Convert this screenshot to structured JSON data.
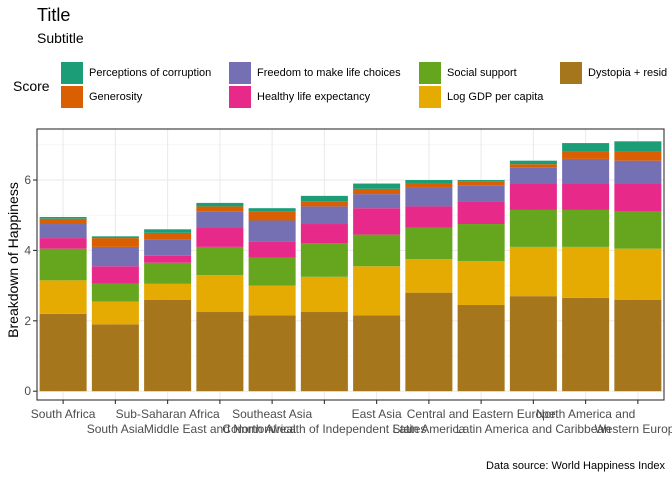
{
  "title": "Title",
  "subtitle": "Subtitle",
  "caption": "Data source: World Happiness Index",
  "legend": {
    "title": "Score",
    "items": [
      {
        "label": "Perceptions of corruption",
        "color": "#1B9E77"
      },
      {
        "label": "Generosity",
        "color": "#D95F02"
      },
      {
        "label": "Freedom to make life choices",
        "color": "#7570B3"
      },
      {
        "label": "Healthy life expectancy",
        "color": "#E7298A"
      },
      {
        "label": "Social support",
        "color": "#66A61E"
      },
      {
        "label": "Log GDP per capita",
        "color": "#E6AB02"
      },
      {
        "label": "Dystopia + resid",
        "color": "#A6761D"
      }
    ]
  },
  "chart_data": {
    "type": "bar",
    "stacked": true,
    "title": "Title",
    "subtitle": "Subtitle",
    "xlabel": "",
    "ylabel": "Breakdown of Happiness",
    "ylim": [
      -0.25,
      7.45
    ],
    "yticks": [
      0,
      2,
      4,
      6
    ],
    "grid": true,
    "legend_position": "top",
    "categories": [
      "South Africa",
      "South Asia",
      "Sub-Saharan Africa",
      "Middle East and North Africa",
      "Southeast Asia",
      "Commonwealth of Independent States",
      "East Asia",
      "Latin America",
      "Central and Eastern Europe",
      "Latin America and Caribbean",
      "North America and",
      "Western Europe"
    ],
    "series": [
      {
        "name": "Dystopia + resid",
        "color": "#A6761D",
        "values": [
          2.2,
          1.9,
          2.6,
          2.25,
          2.15,
          2.25,
          2.15,
          2.8,
          2.45,
          2.7,
          2.65,
          2.6
        ]
      },
      {
        "name": "Log GDP per capita",
        "color": "#E6AB02",
        "values": [
          0.95,
          0.65,
          0.45,
          1.05,
          0.85,
          1.0,
          1.4,
          0.95,
          1.25,
          1.4,
          1.45,
          1.45
        ]
      },
      {
        "name": "Social support",
        "color": "#66A61E",
        "values": [
          0.9,
          0.5,
          0.6,
          0.8,
          0.8,
          0.95,
          0.9,
          0.9,
          1.05,
          1.05,
          1.05,
          1.05
        ]
      },
      {
        "name": "Healthy life expectancy",
        "color": "#E7298A",
        "values": [
          0.3,
          0.5,
          0.2,
          0.55,
          0.45,
          0.55,
          0.75,
          0.6,
          0.65,
          0.75,
          0.75,
          0.8
        ]
      },
      {
        "name": "Freedom to make life choices",
        "color": "#7570B3",
        "values": [
          0.4,
          0.55,
          0.45,
          0.45,
          0.6,
          0.5,
          0.4,
          0.55,
          0.45,
          0.45,
          0.7,
          0.65
        ]
      },
      {
        "name": "Generosity",
        "color": "#D95F02",
        "values": [
          0.15,
          0.25,
          0.2,
          0.15,
          0.25,
          0.15,
          0.15,
          0.1,
          0.1,
          0.1,
          0.2,
          0.25
        ]
      },
      {
        "name": "Perceptions of corruption",
        "color": "#1B9E77",
        "values": [
          0.05,
          0.05,
          0.1,
          0.1,
          0.1,
          0.15,
          0.15,
          0.1,
          0.05,
          0.1,
          0.25,
          0.3
        ]
      }
    ]
  }
}
